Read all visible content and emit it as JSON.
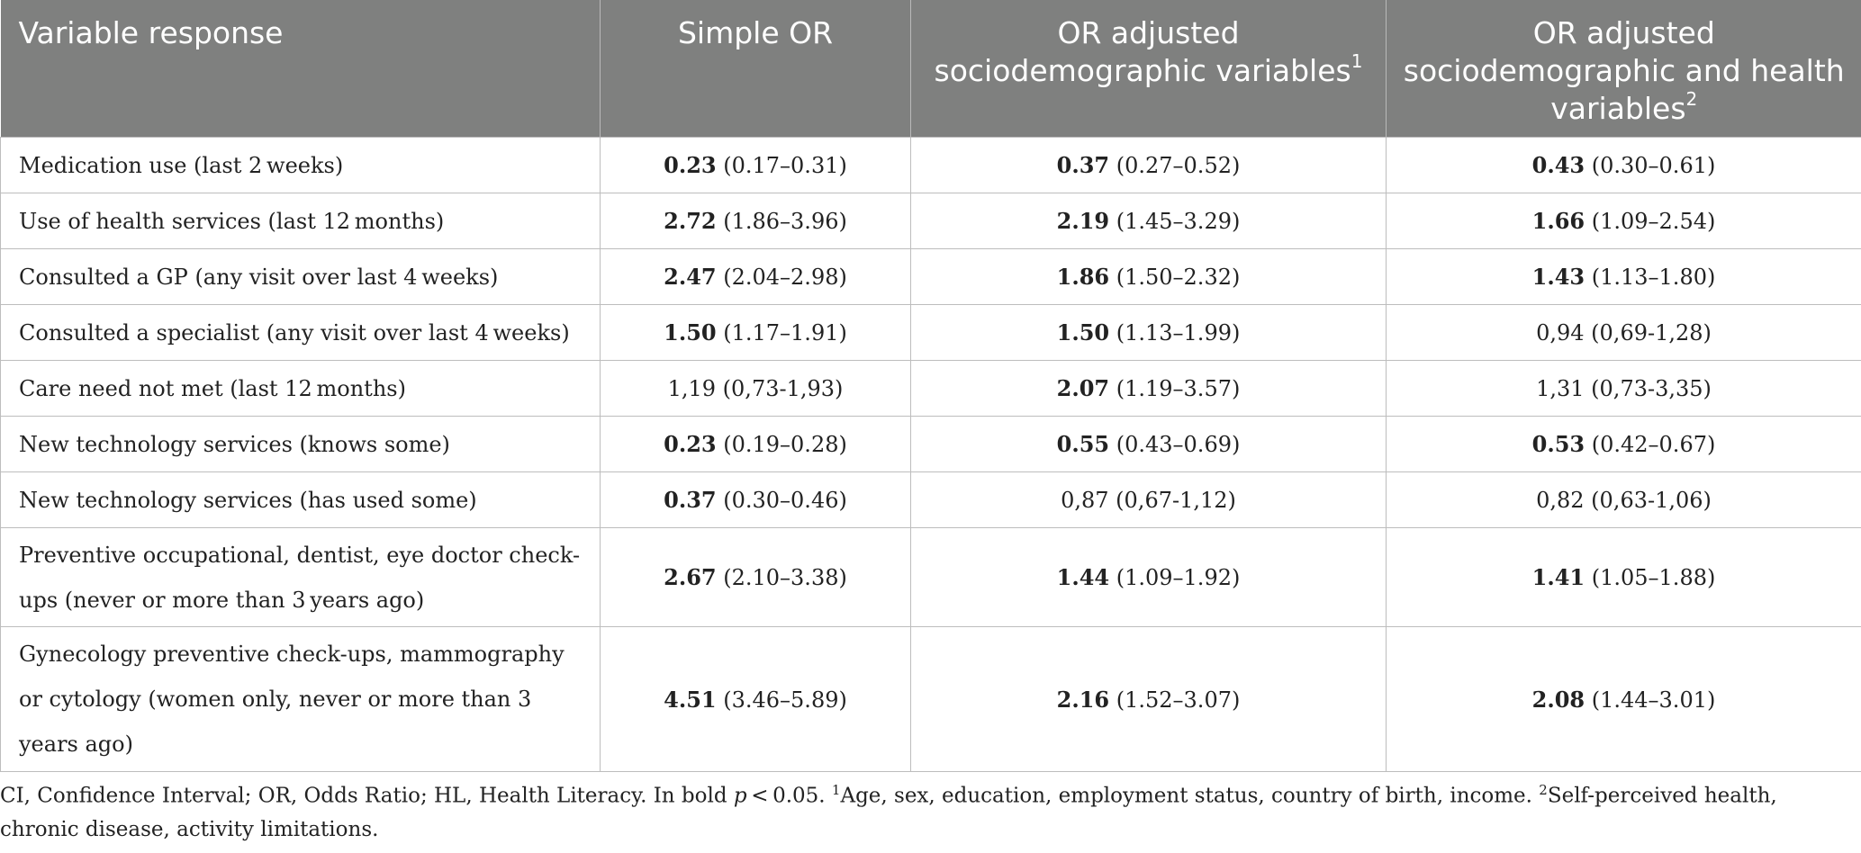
{
  "table": {
    "headers": [
      {
        "text": "Variable response",
        "sup": ""
      },
      {
        "text": "Simple OR",
        "sup": ""
      },
      {
        "text": "OR adjusted sociodemographic variables",
        "sup": "1"
      },
      {
        "text": "OR adjusted sociodemographic and health variables",
        "sup": "2"
      }
    ],
    "rows": [
      {
        "label": "Medication use (last 2 weeks)",
        "cells": [
          {
            "bold": "0.23",
            "ci": " (0.17–0.31)"
          },
          {
            "bold": "0.37",
            "ci": " (0.27–0.52)"
          },
          {
            "bold": "0.43",
            "ci": " (0.30–0.61)"
          }
        ]
      },
      {
        "label": "Use of health services (last 12 months)",
        "cells": [
          {
            "bold": "2.72",
            "ci": " (1.86–3.96)"
          },
          {
            "bold": "2.19",
            "ci": " (1.45–3.29)"
          },
          {
            "bold": "1.66",
            "ci": " (1.09–2.54)"
          }
        ]
      },
      {
        "label": "Consulted a GP (any visit over last 4 weeks)",
        "cells": [
          {
            "bold": "2.47",
            "ci": " (2.04–2.98)"
          },
          {
            "bold": "1.86",
            "ci": " (1.50–2.32)"
          },
          {
            "bold": "1.43",
            "ci": " (1.13–1.80)"
          }
        ]
      },
      {
        "label": "Consulted a specialist (any visit over last 4 weeks)",
        "cells": [
          {
            "bold": "1.50",
            "ci": " (1.17–1.91)"
          },
          {
            "bold": "1.50",
            "ci": " (1.13–1.99)"
          },
          {
            "bold": "",
            "ci": "0,94 (0,69-1,28)"
          }
        ]
      },
      {
        "label": "Care need not met (last 12 months)",
        "cells": [
          {
            "bold": "",
            "ci": "1,19 (0,73-1,93)"
          },
          {
            "bold": "2.07",
            "ci": " (1.19–3.57)"
          },
          {
            "bold": "",
            "ci": "1,31 (0,73-3,35)"
          }
        ]
      },
      {
        "label": "New technology services (knows some)",
        "cells": [
          {
            "bold": "0.23",
            "ci": " (0.19–0.28)"
          },
          {
            "bold": "0.55",
            "ci": " (0.43–0.69)"
          },
          {
            "bold": "0.53",
            "ci": " (0.42–0.67)"
          }
        ]
      },
      {
        "label": "New technology services (has used some)",
        "cells": [
          {
            "bold": "0.37",
            "ci": " (0.30–0.46)"
          },
          {
            "bold": "",
            "ci": "0,87 (0,67-1,12)"
          },
          {
            "bold": "",
            "ci": "0,82 (0,63-1,06)"
          }
        ]
      },
      {
        "label": "Preventive occupational, dentist, eye doctor check-ups (never or more than 3 years ago)",
        "cells": [
          {
            "bold": "2.67",
            "ci": " (2.10–3.38)"
          },
          {
            "bold": "1.44",
            "ci": " (1.09–1.92)"
          },
          {
            "bold": "1.41",
            "ci": " (1.05–1.88)"
          }
        ]
      },
      {
        "label": "Gynecology preventive check-ups, mammography or cytology (women only, never or more than 3 years ago)",
        "cells": [
          {
            "bold": "4.51",
            "ci": " (3.46–5.89)"
          },
          {
            "bold": "2.16",
            "ci": " (1.52–3.07)"
          },
          {
            "bold": "2.08",
            "ci": " (1.44–3.01)"
          }
        ]
      }
    ]
  },
  "footnote": {
    "part1": "CI, Confidence Interval; OR, Odds Ratio; HL, Health Literacy. In bold ",
    "p": "p",
    "part2": " < 0.05. ",
    "sup1": "1",
    "note1": "Age, sex, education, employment status, country of birth, income. ",
    "sup2": "2",
    "note2": "Self-perceived health, chronic disease, activity limitations."
  }
}
